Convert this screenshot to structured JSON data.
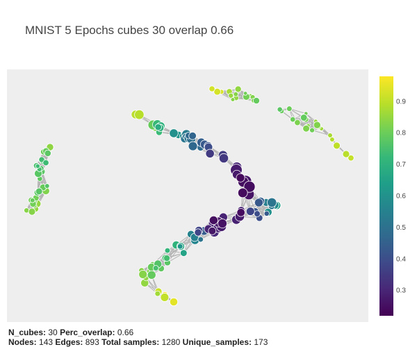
{
  "title": "MNIST 5 Epochs cubes 30 overlap 0.66",
  "colors": {
    "plot_bg": "#eeeeee",
    "edge": "#b4b4b4",
    "node_stroke": "#ffffff",
    "colorscale": [
      "#440154",
      "#482777",
      "#3e4989",
      "#31688e",
      "#26828e",
      "#1f9e89",
      "#35b779",
      "#6ece58",
      "#b5de2b",
      "#fde725"
    ]
  },
  "colorbar": {
    "min": 0.22,
    "max": 0.98,
    "ticks": [
      "0.3",
      "0.4",
      "0.5",
      "0.6",
      "0.7",
      "0.8",
      "0.9"
    ]
  },
  "footer": {
    "line1_label": "N_cubes:",
    "line1_value": "30",
    "line1_label2": "Perc_overlap:",
    "line1_value2": "0.66",
    "nodes_label": "Nodes:",
    "nodes_value": "143",
    "edges_label": "Edges:",
    "edges_value": "893",
    "total_label": "Total samples:",
    "total_value": "1280",
    "unique_label": "Unique_samples:",
    "unique_value": "173"
  },
  "chart_data": {
    "type": "network",
    "axes_visible": false,
    "colorbar_range": [
      0.22,
      0.98
    ],
    "node_count": 143,
    "edge_count": 893
  }
}
